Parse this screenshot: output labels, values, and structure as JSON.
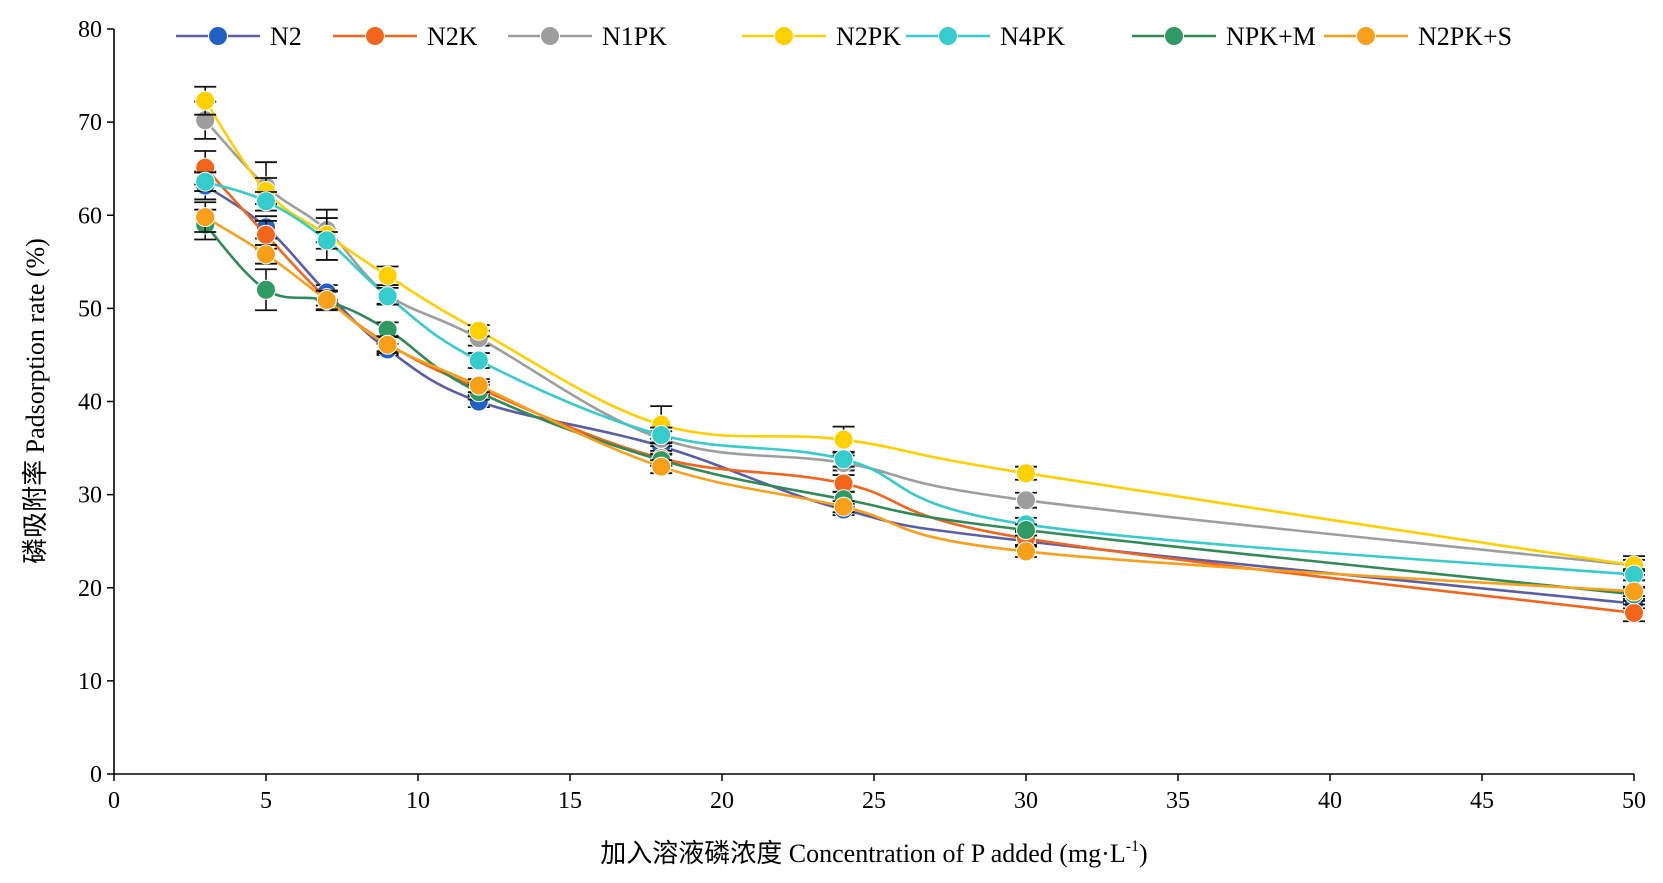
{
  "chart_data": {
    "type": "line",
    "xlabel": "加入溶液磷浓度 Concentration of P added (mg·L",
    "xlabel_sup": "-1",
    "xlabel_close": ")",
    "ylabel": "磷吸附率 Padsorption rate (%)",
    "xlim": [
      0,
      50
    ],
    "ylim": [
      0,
      80
    ],
    "xticks": [
      0,
      5,
      10,
      15,
      20,
      25,
      30,
      35,
      40,
      45,
      50
    ],
    "yticks": [
      0,
      10,
      20,
      30,
      40,
      50,
      60,
      70,
      80
    ],
    "grid": false,
    "legend_position": "top",
    "x": [
      3,
      5,
      7,
      9,
      12,
      18,
      24,
      30,
      50
    ],
    "series": [
      {
        "name": "N2",
        "color": "#5b5ea6",
        "marker_color": "#2160c4",
        "values": [
          63.2,
          58.7,
          51.7,
          45.6,
          40.0,
          35.2,
          28.4,
          25.0,
          18.3
        ],
        "errors": [
          1.5,
          1.2,
          0.8,
          0.6,
          0.6,
          0.8,
          0.6,
          0.6,
          0.5
        ]
      },
      {
        "name": "N2K",
        "color": "#f4651c",
        "marker_color": "#f4651c",
        "values": [
          65.1,
          57.9,
          51.1,
          46.2,
          41.4,
          33.9,
          31.2,
          25.3,
          17.3
        ],
        "errors": [
          1.8,
          1.5,
          0.8,
          0.8,
          0.7,
          0.8,
          0.9,
          0.7,
          0.9
        ]
      },
      {
        "name": "N1PK",
        "color": "#9e9e9e",
        "marker_color": "#9e9e9e",
        "values": [
          70.2,
          63.1,
          58.4,
          51.5,
          46.8,
          36.0,
          33.4,
          29.4,
          22.4
        ],
        "errors": [
          2.0,
          2.6,
          1.3,
          1.0,
          0.8,
          0.8,
          0.8,
          0.8,
          0.6
        ]
      },
      {
        "name": "N2PK",
        "color": "#ffd000",
        "marker_color": "#ffd000",
        "values": [
          72.3,
          62.6,
          57.9,
          53.5,
          47.6,
          37.5,
          35.9,
          32.3,
          22.4
        ],
        "errors": [
          1.5,
          1.4,
          2.7,
          1.0,
          0.6,
          2.0,
          1.4,
          0.7,
          1.0
        ]
      },
      {
        "name": "N4PK",
        "color": "#35cccc",
        "marker_color": "#35cccc",
        "values": [
          63.6,
          61.5,
          57.3,
          51.3,
          44.4,
          36.4,
          33.8,
          26.8,
          21.4
        ],
        "errors": [
          1.0,
          1.0,
          0.9,
          0.9,
          0.8,
          0.8,
          0.8,
          0.7,
          0.6
        ]
      },
      {
        "name": "NPK+M",
        "color": "#2e8b57",
        "marker_color": "#2f9a63",
        "values": [
          59.0,
          52.0,
          50.8,
          47.7,
          41.0,
          33.7,
          29.5,
          26.2,
          19.3
        ],
        "errors": [
          1.6,
          2.2,
          1.0,
          0.8,
          0.8,
          0.6,
          0.8,
          0.6,
          0.7
        ]
      },
      {
        "name": "N2PK+S",
        "color": "#f9a01b",
        "marker_color": "#f9a01b",
        "values": [
          59.8,
          55.8,
          50.9,
          46.1,
          41.7,
          33.0,
          28.7,
          23.9,
          19.6
        ],
        "errors": [
          1.6,
          1.0,
          1.0,
          0.9,
          0.7,
          0.7,
          0.6,
          0.6,
          0.5
        ]
      }
    ]
  }
}
